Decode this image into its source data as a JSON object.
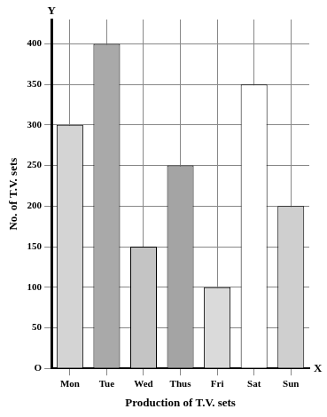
{
  "chart_data": {
    "type": "bar",
    "categories": [
      "Mon",
      "Tue",
      "Wed",
      "Thus",
      "Fri",
      "Sat",
      "Sun"
    ],
    "values": [
      300,
      400,
      150,
      250,
      100,
      350,
      200
    ],
    "colors": [
      "#d4d4d4",
      "#a9a9a9",
      "#c4c4c4",
      "#a4a4a4",
      "#dadada",
      "#ffffff",
      "#cfcfcf"
    ],
    "x_label": "Production of T.V. sets",
    "y_label": "No. of T.V. sets",
    "annotations": [
      "Y",
      "X"
    ],
    "ylim": [
      0,
      430
    ],
    "yticks": [
      {
        "value": 0,
        "label": "O"
      },
      50,
      100,
      150,
      200,
      250,
      300,
      350,
      400
    ],
    "grid": true
  }
}
